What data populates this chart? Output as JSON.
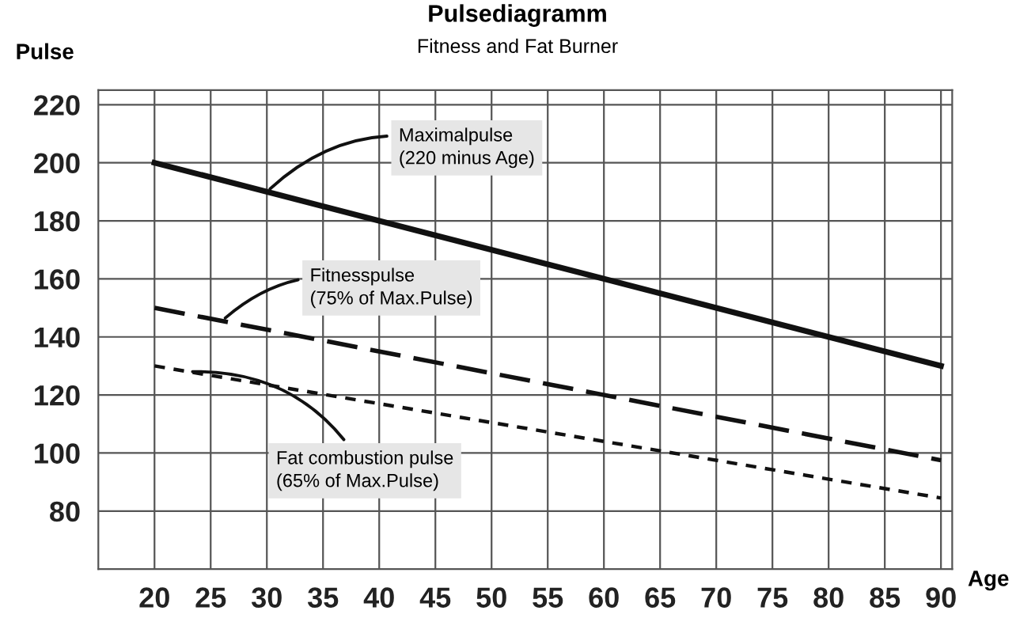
{
  "chart_data": {
    "type": "line",
    "title": "Pulsediagramm",
    "subtitle": "Fitness and Fat Burner",
    "xlabel": "Age",
    "ylabel": "Pulse",
    "x": [
      20,
      90
    ],
    "series": [
      {
        "color": "#111111",
        "values": [
          200,
          130
        ],
        "line_style": "solid"
      },
      {
        "color": "#111111",
        "values": [
          150,
          97.5
        ],
        "line_style": "dashed"
      },
      {
        "color": "#111111",
        "values": [
          130,
          84.5
        ],
        "line_style": "dotted"
      }
    ],
    "annotations": [
      {
        "text": "Maximalpulse\n(220 minus Age)",
        "x": 30,
        "y": 190
      },
      {
        "text": "Fitnesspulse\n(75% of Max.Pulse)",
        "x": 26,
        "y": 145.5
      },
      {
        "text": "Fat combustion pulse\n(65% of Max.Pulse)",
        "x": 23,
        "y": 128
      }
    ],
    "xlim": [
      15,
      91
    ],
    "ylim": [
      60,
      225
    ],
    "xticks": [
      20,
      25,
      30,
      35,
      40,
      45,
      50,
      55,
      60,
      65,
      70,
      75,
      80,
      85,
      90
    ],
    "yticks": [
      80,
      100,
      120,
      140,
      160,
      180,
      200,
      220
    ],
    "grid": true,
    "legend": false,
    "marker": "none"
  }
}
